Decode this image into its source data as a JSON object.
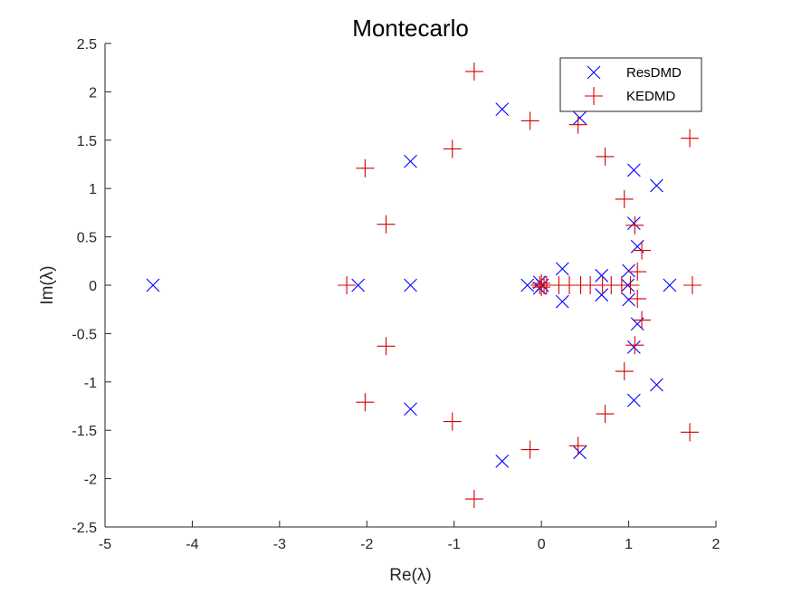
{
  "chart_data": {
    "type": "scatter",
    "title": "Montecarlo",
    "xlabel": "Re(λ)",
    "ylabel": "Im(λ)",
    "xlim": [
      -5,
      2
    ],
    "ylim": [
      -2.5,
      2.5
    ],
    "xticks": [
      -5,
      -4,
      -3,
      -2,
      -1,
      0,
      1,
      2
    ],
    "yticks": [
      -2.5,
      -2,
      -1.5,
      -1,
      -0.5,
      0,
      0.5,
      1,
      1.5,
      2,
      2.5
    ],
    "xtick_labels": [
      "-5",
      "-4",
      "-3",
      "-2",
      "-1",
      "0",
      "1",
      "2"
    ],
    "ytick_labels": [
      "-2.5",
      "-2",
      "-1.5",
      "-1",
      "-0.5",
      "0",
      "0.5",
      "1",
      "1.5",
      "2",
      "2.5"
    ],
    "grid": false,
    "legend_position": "top-right",
    "series": [
      {
        "name": "ResDMD",
        "marker": "x",
        "color": "#0000ff",
        "points": [
          [
            -4.45,
            0
          ],
          [
            -2.1,
            0
          ],
          [
            -1.5,
            0
          ],
          [
            -1.5,
            1.28
          ],
          [
            -1.5,
            -1.28
          ],
          [
            -0.45,
            1.82
          ],
          [
            -0.45,
            -1.82
          ],
          [
            0.44,
            1.73
          ],
          [
            0.44,
            -1.73
          ],
          [
            1.06,
            1.19
          ],
          [
            1.06,
            -1.19
          ],
          [
            1.32,
            1.03
          ],
          [
            1.32,
            -1.03
          ],
          [
            1.06,
            0.64
          ],
          [
            1.06,
            -0.64
          ],
          [
            1.1,
            0.4
          ],
          [
            1.1,
            -0.4
          ],
          [
            1.47,
            0
          ],
          [
            0.24,
            0.17
          ],
          [
            0.24,
            -0.17
          ],
          [
            0.69,
            0.1
          ],
          [
            0.69,
            -0.1
          ],
          [
            1.0,
            0.15
          ],
          [
            1.0,
            -0.15
          ],
          [
            -0.16,
            0
          ],
          [
            -0.02,
            0.03
          ],
          [
            -0.02,
            -0.03
          ],
          [
            0.01,
            0
          ],
          [
            0.99,
            0
          ]
        ]
      },
      {
        "name": "KEDMD",
        "marker": "+",
        "color": "#d40000",
        "points": [
          [
            -0.77,
            2.21
          ],
          [
            -0.77,
            -2.21
          ],
          [
            -0.13,
            1.7
          ],
          [
            -0.13,
            -1.7
          ],
          [
            0.42,
            1.66
          ],
          [
            0.42,
            -1.66
          ],
          [
            1.7,
            1.52
          ],
          [
            1.7,
            -1.52
          ],
          [
            0.73,
            1.33
          ],
          [
            0.73,
            -1.33
          ],
          [
            -2.02,
            1.21
          ],
          [
            -2.02,
            -1.21
          ],
          [
            -1.02,
            1.41
          ],
          [
            -1.02,
            -1.41
          ],
          [
            -1.78,
            0.63
          ],
          [
            -1.78,
            -0.63
          ],
          [
            0.95,
            0.89
          ],
          [
            0.95,
            -0.89
          ],
          [
            1.07,
            0.62
          ],
          [
            1.07,
            -0.62
          ],
          [
            1.15,
            0.36
          ],
          [
            1.15,
            -0.36
          ],
          [
            1.1,
            0.14
          ],
          [
            1.1,
            -0.14
          ],
          [
            -2.23,
            0
          ],
          [
            1.73,
            0
          ],
          [
            0.06,
            0
          ],
          [
            0.2,
            0
          ],
          [
            0.32,
            0
          ],
          [
            0.45,
            0
          ],
          [
            0.56,
            0
          ],
          [
            0.7,
            0
          ],
          [
            0.8,
            0
          ],
          [
            0.92,
            0
          ],
          [
            1.02,
            0
          ],
          [
            -0.02,
            0
          ],
          [
            0.0,
            0.02
          ],
          [
            0.0,
            -0.02
          ],
          [
            0.03,
            0
          ]
        ]
      }
    ]
  }
}
